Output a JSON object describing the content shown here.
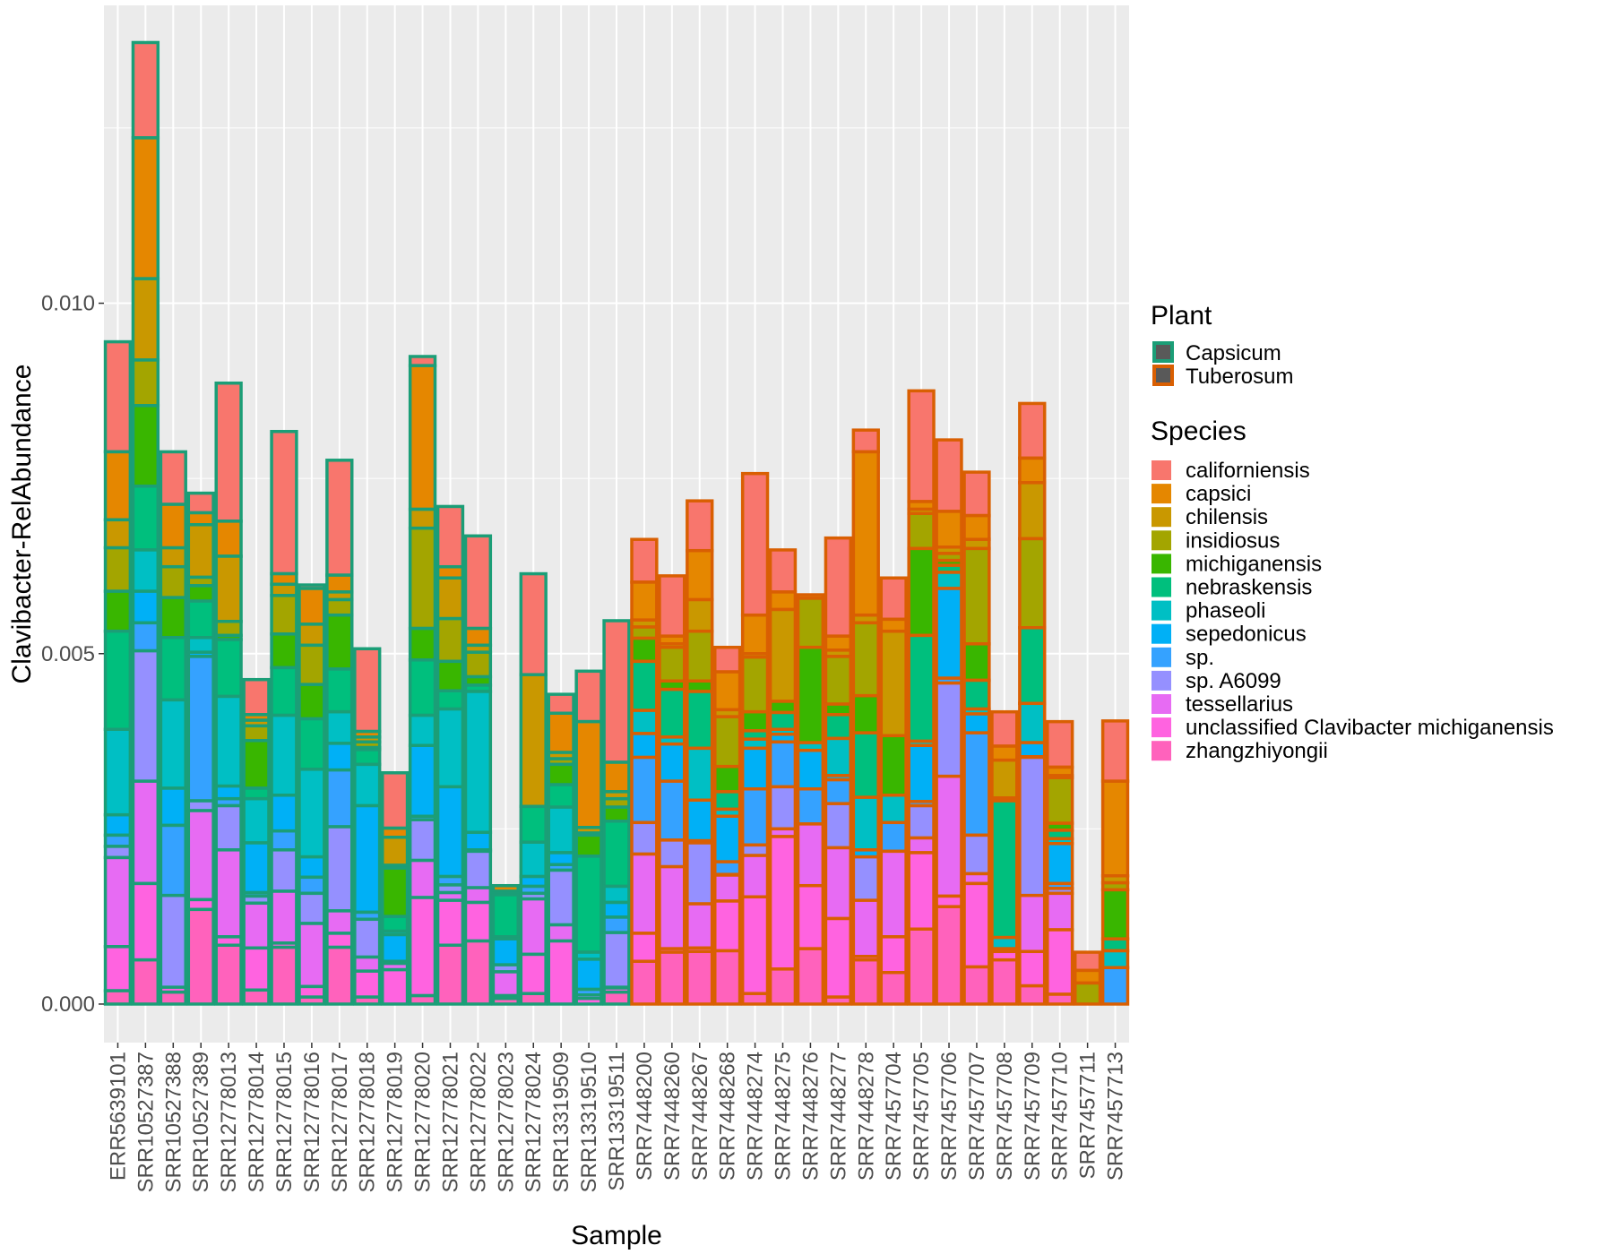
{
  "chart_data": {
    "type": "bar",
    "stacked": true,
    "xlabel": "Sample",
    "ylabel": "Clavibacter-RelAbundance",
    "ylim": [
      -0.00055,
      0.01425
    ],
    "yticks": [
      0.0,
      0.005,
      0.01
    ],
    "ytick_labels": [
      "0.000",
      "0.005",
      "0.010"
    ],
    "grid": true,
    "legend_placement": "right",
    "plant_legend": {
      "title": "Plant",
      "entries": [
        {
          "name": "Capsicum",
          "color": "#1B9E77"
        },
        {
          "name": "Tuberosum",
          "color": "#D95F02"
        }
      ]
    },
    "species_legend": {
      "title": "Species",
      "entries": [
        {
          "name": "californiensis",
          "color": "#F8766D"
        },
        {
          "name": "capsici",
          "color": "#E58700"
        },
        {
          "name": "chilensis",
          "color": "#C99800"
        },
        {
          "name": "insidiosus",
          "color": "#A3A500"
        },
        {
          "name": "michiganensis",
          "color": "#39B600"
        },
        {
          "name": "nebraskensis",
          "color": "#00BF7D"
        },
        {
          "name": "phaseoli",
          "color": "#00BFC4"
        },
        {
          "name": "sepedonicus",
          "color": "#00B0F6"
        },
        {
          "name": "sp.",
          "color": "#35A2FF"
        },
        {
          "name": "sp. A6099",
          "color": "#9590FF"
        },
        {
          "name": "tessellarius",
          "color": "#E76BF3"
        },
        {
          "name": "unclassified Clavibacter michiganensis",
          "color": "#FF63E0"
        },
        {
          "name": "zhangzhiyongii",
          "color": "#FF62BC"
        }
      ]
    },
    "samples": [
      {
        "name": "ERR5639101",
        "plant": "Capsicum",
        "values": [
          0.00157,
          0.00097,
          0.0004,
          0.00062,
          0.00057,
          0.0014,
          0.00122,
          0.00029,
          0.00016,
          0.00016,
          0.00127,
          0.00063,
          0.00019
        ]
      },
      {
        "name": "SRR10527387",
        "plant": "Capsicum",
        "values": [
          0.00136,
          0.00201,
          0.00116,
          0.00065,
          0.00115,
          0.00091,
          0.00059,
          0.00045,
          0.0004,
          0.00186,
          0.00146,
          0.00109,
          0.00063
        ]
      },
      {
        "name": "SRR10527388",
        "plant": "Capsicum",
        "values": [
          0.00075,
          0.00062,
          0.00027,
          0.00044,
          0.00057,
          0.00089,
          0.00126,
          0.00053,
          0.001,
          0.00131,
          0.0,
          7e-05,
          0.00017
        ]
      },
      {
        "name": "SRR10527389",
        "plant": "Capsicum",
        "values": [
          0.00028,
          0.00017,
          0.00075,
          0.00012,
          0.00022,
          0.00052,
          0.00021,
          6e-05,
          0.00206,
          0.00014,
          0.00127,
          0.00014,
          0.00135
        ]
      },
      {
        "name": "SRR12778013",
        "plant": "Capsicum",
        "values": [
          0.00197,
          0.0005,
          0.00093,
          0.0002,
          6e-05,
          0.00081,
          0.00128,
          0.00018,
          0.0001,
          0.00063,
          0.00124,
          0.00012,
          0.00084
        ]
      },
      {
        "name": "SRR12778014",
        "plant": "Capsicum",
        "values": [
          0.0005,
          8e-05,
          8e-05,
          0.00021,
          0.00068,
          0.00015,
          0.00063,
          0.00071,
          5e-05,
          0.0001,
          0.00064,
          0.0006,
          0.0002
        ]
      },
      {
        "name": "SRR12778015",
        "plant": "Capsicum",
        "values": [
          0.00203,
          0.00015,
          0.00016,
          0.00055,
          0.00048,
          0.00068,
          0.00114,
          0.00051,
          0.00027,
          0.00059,
          0.00074,
          6e-05,
          0.00081
        ]
      },
      {
        "name": "SRR12778016",
        "plant": "Capsicum",
        "values": [
          5e-05,
          0.00051,
          0.0003,
          0.00056,
          0.00049,
          0.00072,
          0.00125,
          0.00029,
          0.00023,
          0.00043,
          0.0009,
          0.00015,
          0.0001
        ]
      },
      {
        "name": "SRR12778017",
        "plant": "Capsicum",
        "values": [
          0.00164,
          0.00024,
          0.00011,
          0.00022,
          0.00077,
          0.00061,
          0.00045,
          0.00038,
          0.00081,
          0.0012,
          0.00032,
          0.0002,
          0.00081
        ]
      },
      {
        "name": "SRR12778018",
        "plant": "Capsicum",
        "values": [
          0.00118,
          8e-05,
          7e-05,
          8e-05,
          3e-05,
          0.00021,
          0.00059,
          0.00152,
          0.0001,
          0.00054,
          0.0002,
          0.00037,
          0.0001
        ]
      },
      {
        "name": "SRR12778019",
        "plant": "Capsicum",
        "values": [
          0.00079,
          0.00013,
          0.0004,
          4e-05,
          0.00069,
          0.00021,
          5e-05,
          0.00038,
          1e-05,
          2e-05,
          9e-05,
          0.00049,
          0.0
        ]
      },
      {
        "name": "SRR12778020",
        "plant": "Capsicum",
        "values": [
          0.00013,
          0.00205,
          0.00027,
          0.00143,
          0.00045,
          0.00079,
          0.00043,
          0.00101,
          5e-05,
          0.00058,
          0.00053,
          0.0014,
          0.00012
        ]
      },
      {
        "name": "SRR12778021",
        "plant": "Capsicum",
        "values": [
          0.00086,
          0.00016,
          0.00058,
          0.00061,
          0.00042,
          0.00026,
          0.00111,
          0.00128,
          0.00012,
          0.00011,
          0.00011,
          0.00064,
          0.00084
        ]
      },
      {
        "name": "SRR12778022",
        "plant": "Capsicum",
        "values": [
          0.00132,
          0.00024,
          0.0001,
          0.00035,
          0.00012,
          9e-05,
          0.00201,
          0.00025,
          2e-05,
          0.00052,
          0.00021,
          0.00055,
          0.0009
        ]
      },
      {
        "name": "SRR12778023",
        "plant": "Capsicum",
        "values": [
          0.0,
          8e-05,
          3e-05,
          0.0,
          2e-05,
          0.0006,
          3e-05,
          0.00037,
          0.0,
          0.0001,
          0.00034,
          4e-05,
          8e-05
        ]
      },
      {
        "name": "SRR12778024",
        "plant": "Capsicum",
        "values": [
          0.00144,
          0.0,
          0.00188,
          0.0,
          0.0,
          0.00051,
          0.00049,
          0.00014,
          0.0001,
          8e-05,
          0.00079,
          0.00056,
          0.00015
        ]
      },
      {
        "name": "SRR13319509",
        "plant": "Capsicum",
        "values": [
          0.00027,
          0.00056,
          9e-05,
          8e-05,
          0.00029,
          0.00032,
          0.00065,
          0.00017,
          8e-05,
          0.00078,
          0.00023,
          0.0009,
          0.0
        ]
      },
      {
        "name": "SRR13319510",
        "plant": "Capsicum",
        "values": [
          0.00072,
          0.00151,
          8e-05,
          3e-05,
          0.0003,
          0.00137,
          0.0001,
          0.00043,
          8e-05,
          5e-05,
          0.0,
          8e-05,
          0.0
        ]
      },
      {
        "name": "SRR13319511",
        "plant": "Capsicum",
        "values": [
          0.00202,
          0.00042,
          0.0001,
          0.00012,
          0.0002,
          0.00093,
          0.00023,
          0.00021,
          0.00022,
          0.00078,
          1e-05,
          6e-05,
          0.00017
        ]
      },
      {
        "name": "SRR7448200",
        "plant": "Tuberosum",
        "values": [
          0.00061,
          0.00054,
          0.0001,
          0.00016,
          0.00033,
          0.0007,
          0.00033,
          0.00034,
          0.00093,
          0.00045,
          0.00113,
          0.0004,
          0.00061
        ]
      },
      {
        "name": "SRR7448260",
        "plant": "Tuberosum",
        "values": [
          0.00086,
          0.00011,
          5e-05,
          0.00048,
          0.00012,
          0.00068,
          0.0001,
          0.00053,
          0.00084,
          0.00038,
          0.00117,
          5e-05,
          0.00074
        ]
      },
      {
        "name": "SRR7448267",
        "plant": "Tuberosum",
        "values": [
          0.00071,
          0.0007,
          0.00045,
          0.00071,
          0.00015,
          0.00081,
          0.00074,
          0.00058,
          3e-05,
          0.00087,
          0.00063,
          5e-05,
          0.00075
        ]
      },
      {
        "name": "SRR7448268",
        "plant": "Tuberosum",
        "values": [
          0.00035,
          0.00054,
          0.0001,
          0.00071,
          0.00036,
          0.00025,
          0.0001,
          0.00065,
          0.00018,
          1e-05,
          0.00037,
          0.00071,
          0.00076
        ]
      },
      {
        "name": "SRR7448274",
        "plant": "Tuberosum",
        "values": [
          0.00202,
          0.00055,
          5e-05,
          0.00078,
          0.00027,
          0.00012,
          0.00013,
          0.00058,
          0.0008,
          0.00015,
          0.00059,
          0.00138,
          0.00015
        ]
      },
      {
        "name": "SRR7448275",
        "plant": "Tuberosum",
        "values": [
          0.0006,
          0.00025,
          0.00131,
          0.0,
          0.00016,
          0.00024,
          7e-05,
          0.00011,
          0.00064,
          0.0006,
          0.00011,
          0.00189,
          0.0005
        ]
      },
      {
        "name": "SRR7448276",
        "plant": "Tuberosum",
        "values": [
          0.0,
          5e-05,
          0.0,
          0.0007,
          0.00136,
          0.0,
          0.00011,
          0.00055,
          0.0005,
          0.0,
          0.00088,
          0.0009,
          0.00079
        ]
      },
      {
        "name": "SRR7448277",
        "plant": "Tuberosum",
        "values": [
          0.0014,
          0.0002,
          9e-05,
          0.00068,
          0.00015,
          0.00034,
          0.00053,
          6e-05,
          0.00034,
          0.00063,
          0.00101,
          0.00112,
          0.0001
        ]
      },
      {
        "name": "SRR7448278",
        "plant": "Tuberosum",
        "values": [
          0.00031,
          0.00233,
          0.00011,
          0.00104,
          0.00053,
          0.00092,
          0.00075,
          0.0001,
          0.0,
          0.00062,
          0.0008,
          5e-05,
          0.00063
        ]
      },
      {
        "name": "SRR7457704",
        "plant": "Tuberosum",
        "values": [
          0.00059,
          0.00017,
          0.00149,
          0.0,
          0.00085,
          0.0,
          0.00039,
          0.0,
          0.00041,
          0.0,
          0.00122,
          0.00051,
          0.00045
        ]
      },
      {
        "name": "SRR7457705",
        "plant": "Tuberosum",
        "values": [
          0.00158,
          0.00011,
          6e-05,
          0.0005,
          0.00124,
          0.00151,
          6e-05,
          0.0008,
          6e-05,
          0.00046,
          0.00021,
          0.00109,
          0.00107
        ]
      },
      {
        "name": "SRR7457706",
        "plant": "Tuberosum",
        "values": [
          0.00102,
          0.00051,
          9e-05,
          0.0001,
          7e-05,
          0.0001,
          0.00023,
          0.00128,
          7e-05,
          0.00133,
          0.00171,
          0.00015,
          0.00139
        ]
      },
      {
        "name": "SRR7457707",
        "plant": "Tuberosum",
        "values": [
          0.00062,
          0.00034,
          0.00013,
          0.00136,
          0.00052,
          0.00041,
          7e-05,
          0.00027,
          0.00146,
          0.00055,
          0.00014,
          0.00119,
          0.00053
        ]
      },
      {
        "name": "SRR7457708",
        "plant": "Tuberosum",
        "values": [
          0.00049,
          0.0002,
          0.00054,
          4e-05,
          0.0,
          0.00195,
          0.00016,
          4e-05,
          0.0,
          0.0,
          0.0,
          0.00012,
          0.00063
        ]
      },
      {
        "name": "SRR7457709",
        "plant": "Tuberosum",
        "values": [
          0.00078,
          0.00035,
          0.0008,
          0.00127,
          0.0,
          0.00108,
          0.00056,
          0.0002,
          1e-05,
          0.00197,
          0.0008,
          0.00049,
          0.00026
        ]
      },
      {
        "name": "SRR7457710",
        "plant": "Tuberosum",
        "values": [
          0.00065,
          0.00012,
          3e-05,
          0.00065,
          0.0001,
          0.00012,
          7e-05,
          0.00057,
          7e-05,
          7e-05,
          0.00052,
          0.00092,
          0.00014
        ]
      },
      {
        "name": "SRR7457711",
        "plant": "Tuberosum",
        "values": [
          0.00026,
          0.00018,
          0.0,
          0.0003,
          0.0,
          0.0,
          0.0,
          0.0,
          0.0,
          0.0,
          0.0,
          0.0,
          0.0
        ]
      },
      {
        "name": "SRR7457713",
        "plant": "Tuberosum",
        "values": [
          0.00086,
          0.00135,
          0.0001,
          0.0001,
          0.0007,
          0.00017,
          0.00024,
          0.0,
          0.00052,
          0.0,
          0.0,
          0.0,
          0.0
        ]
      }
    ]
  }
}
